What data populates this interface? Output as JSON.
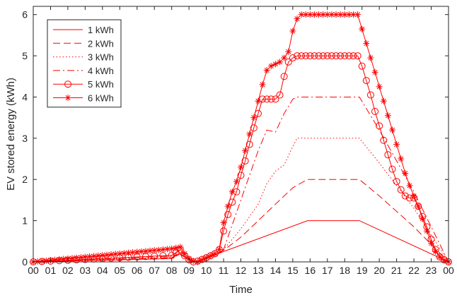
{
  "chart_data": {
    "type": "line",
    "title": "",
    "xlabel": "Time",
    "ylabel": "EV stored energy (kWh)",
    "x_ticks": [
      "00",
      "01",
      "02",
      "03",
      "04",
      "05",
      "06",
      "07",
      "08",
      "09",
      "10",
      "11",
      "12",
      "13",
      "14",
      "15",
      "16",
      "17",
      "18",
      "19",
      "20",
      "21",
      "22",
      "23",
      "00"
    ],
    "xlim": [
      0,
      24
    ],
    "ylim": [
      0,
      6.2
    ],
    "y_ticks": [
      0,
      1,
      2,
      3,
      4,
      5,
      6
    ],
    "grid": false,
    "legend_position": "top-left",
    "color": "#ff0000",
    "series": [
      {
        "name": "1 kWh",
        "style": "solid",
        "marker": "none",
        "x": [
          0,
          8,
          8.4,
          9,
          9.5,
          10,
          11,
          15.85,
          18.85,
          24
        ],
        "y": [
          0,
          0.08,
          0.2,
          0.05,
          0.0,
          0.08,
          0.25,
          1.0,
          1.0,
          0
        ]
      },
      {
        "name": "2 kWh",
        "style": "dashed",
        "marker": "none",
        "x": [
          0,
          8,
          8.4,
          9,
          9.5,
          10,
          11,
          12,
          13,
          14,
          15,
          15.85,
          18.85,
          20,
          22,
          24
        ],
        "y": [
          0,
          0.1,
          0.22,
          0.05,
          0.0,
          0.08,
          0.28,
          0.6,
          1.0,
          1.4,
          1.8,
          2.0,
          2.0,
          1.6,
          0.85,
          0
        ]
      },
      {
        "name": "3 kWh",
        "style": "dotted",
        "marker": "none",
        "x": [
          0,
          8,
          8.4,
          9,
          9.5,
          10,
          11,
          12,
          13,
          13.5,
          14,
          14.5,
          15,
          15.25,
          18.85,
          20,
          22,
          24
        ],
        "y": [
          0,
          0.12,
          0.25,
          0.05,
          0.0,
          0.08,
          0.3,
          0.8,
          1.4,
          1.9,
          2.2,
          2.35,
          2.8,
          3.0,
          3.0,
          2.4,
          1.3,
          0
        ]
      },
      {
        "name": "4 kWh",
        "style": "dashdot",
        "marker": "none",
        "x": [
          0,
          8,
          8.4,
          9,
          9.5,
          10,
          11,
          11.5,
          12,
          12.5,
          13,
          13.5,
          14,
          14.5,
          15,
          15.25,
          18.85,
          20,
          22,
          24
        ],
        "y": [
          0,
          0.14,
          0.28,
          0.05,
          0.0,
          0.08,
          0.3,
          0.9,
          1.5,
          2.1,
          2.7,
          3.2,
          3.15,
          3.6,
          3.95,
          4.0,
          4.0,
          3.2,
          1.7,
          0
        ]
      },
      {
        "name": "5 kWh",
        "style": "solid",
        "marker": "circle",
        "x": [
          0,
          0.5,
          1,
          1.5,
          2,
          2.5,
          3,
          3.5,
          4,
          4.5,
          5,
          5.5,
          6,
          6.5,
          7,
          7.5,
          8,
          8.25,
          8.5,
          8.75,
          9,
          9.25,
          9.5,
          9.75,
          10,
          10.25,
          10.5,
          10.75,
          11,
          11.25,
          11.5,
          11.75,
          12,
          12.25,
          12.5,
          12.75,
          13,
          13.25,
          13.5,
          13.75,
          14,
          14.25,
          14.5,
          14.75,
          15,
          15.25,
          15.5,
          15.75,
          16,
          16.25,
          16.5,
          16.75,
          17,
          17.25,
          17.5,
          17.75,
          18,
          18.25,
          18.5,
          18.75,
          19,
          19.25,
          19.5,
          19.75,
          20,
          20.25,
          20.5,
          20.75,
          21,
          21.25,
          21.5,
          21.75,
          22,
          22.25,
          22.5,
          22.75,
          23,
          23.25,
          23.5,
          23.75,
          24
        ],
        "y": [
          0,
          0.01,
          0.02,
          0.03,
          0.04,
          0.05,
          0.06,
          0.07,
          0.08,
          0.09,
          0.1,
          0.11,
          0.12,
          0.13,
          0.14,
          0.15,
          0.16,
          0.22,
          0.3,
          0.15,
          0.05,
          0.0,
          0.02,
          0.06,
          0.1,
          0.15,
          0.2,
          0.3,
          0.75,
          1.15,
          1.45,
          1.7,
          2.1,
          2.45,
          2.85,
          3.25,
          3.6,
          3.95,
          3.95,
          3.95,
          3.95,
          4.05,
          4.5,
          4.85,
          4.95,
          5.0,
          5.0,
          5.0,
          5.0,
          5.0,
          5.0,
          5.0,
          5.0,
          5.0,
          5.0,
          5.0,
          5.0,
          5.0,
          5.0,
          5.0,
          4.75,
          4.4,
          4.05,
          3.65,
          3.3,
          2.95,
          2.6,
          2.25,
          1.95,
          1.75,
          1.6,
          1.55,
          1.55,
          1.35,
          1.1,
          0.85,
          0.55,
          0.3,
          0.12,
          0.05,
          0
        ]
      },
      {
        "name": "6 kWh",
        "style": "solid",
        "marker": "star",
        "x": [
          0,
          0.25,
          0.5,
          0.75,
          1,
          1.25,
          1.5,
          1.75,
          2,
          2.25,
          2.5,
          2.75,
          3,
          3.25,
          3.5,
          3.75,
          4,
          4.25,
          4.5,
          4.75,
          5,
          5.25,
          5.5,
          5.75,
          6,
          6.25,
          6.5,
          6.75,
          7,
          7.25,
          7.5,
          7.75,
          8,
          8.25,
          8.5,
          8.75,
          9,
          9.25,
          9.5,
          9.75,
          10,
          10.25,
          10.5,
          10.75,
          11,
          11.25,
          11.5,
          11.75,
          12,
          12.25,
          12.5,
          12.75,
          13,
          13.25,
          13.5,
          13.75,
          14,
          14.25,
          14.5,
          14.75,
          15,
          15.25,
          15.5,
          15.75,
          16,
          16.25,
          16.5,
          16.75,
          17,
          17.25,
          17.5,
          17.75,
          18,
          18.25,
          18.5,
          18.75,
          19,
          19.25,
          19.5,
          19.75,
          20,
          20.25,
          20.5,
          20.75,
          21,
          21.25,
          21.5,
          21.75,
          22,
          22.25,
          22.5,
          22.75,
          23,
          23.25,
          23.5,
          23.75,
          24
        ],
        "y": [
          0,
          0.01,
          0.02,
          0.03,
          0.04,
          0.05,
          0.06,
          0.07,
          0.08,
          0.09,
          0.1,
          0.11,
          0.12,
          0.13,
          0.14,
          0.15,
          0.16,
          0.17,
          0.18,
          0.19,
          0.2,
          0.21,
          0.22,
          0.23,
          0.24,
          0.25,
          0.26,
          0.27,
          0.28,
          0.29,
          0.3,
          0.31,
          0.32,
          0.34,
          0.36,
          0.2,
          0.08,
          0.02,
          0.0,
          0.05,
          0.1,
          0.15,
          0.2,
          0.3,
          0.95,
          1.35,
          1.7,
          1.95,
          2.3,
          2.7,
          3.1,
          3.5,
          3.9,
          4.3,
          4.65,
          4.75,
          4.8,
          4.85,
          4.95,
          5.1,
          5.6,
          5.9,
          6.0,
          6.0,
          6.0,
          6.0,
          6.0,
          6.0,
          6.0,
          6.0,
          6.0,
          6.0,
          6.0,
          6.0,
          6.0,
          6.0,
          5.65,
          5.3,
          4.95,
          4.6,
          4.25,
          3.9,
          3.55,
          3.2,
          2.85,
          2.5,
          2.15,
          1.85,
          1.6,
          1.35,
          1.05,
          0.75,
          0.45,
          0.25,
          0.12,
          0.04,
          0
        ]
      }
    ]
  }
}
